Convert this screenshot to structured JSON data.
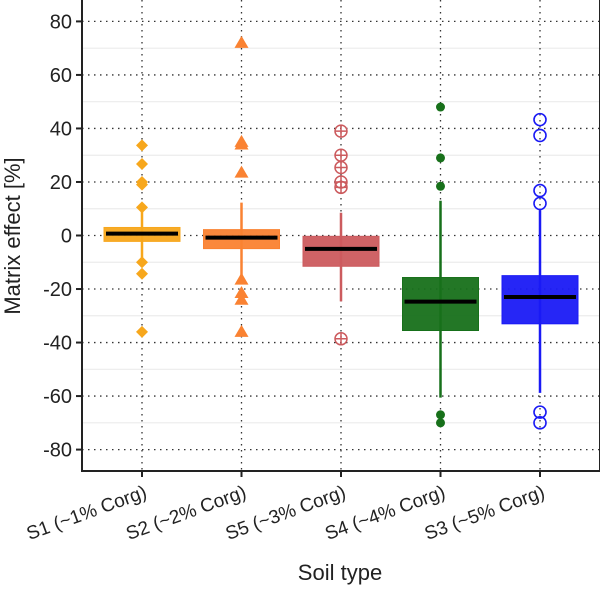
{
  "chart_data": {
    "type": "box",
    "title": "",
    "xlabel": "Soil type",
    "ylabel": "Matrix effect [%]",
    "ylim": [
      -88,
      88
    ],
    "yticks": [
      -80,
      -60,
      -40,
      -20,
      0,
      20,
      40,
      60,
      80
    ],
    "grid": {
      "major": "dotted",
      "minor": "light solid",
      "vertical": "dotted"
    },
    "categories": [
      "S1 (~1% Corg)",
      "S2 (~2% Corg)",
      "S5 (~3% Corg)",
      "S4 (~4% Corg)",
      "S3 (~5% Corg)"
    ],
    "series": [
      {
        "color": "#F7A71C",
        "marker": "diamond",
        "whisker_low": -9,
        "q1": -2.2,
        "median": 0.7,
        "q3": 3,
        "whisker_high": 9,
        "outliers": [
          33.7,
          26.7,
          20,
          19,
          10.5,
          -10,
          -14.3,
          -36
        ]
      },
      {
        "color": "#FA8232",
        "marker": "triangle",
        "whisker_low": -15,
        "q1": -4.9,
        "median": -0.8,
        "q3": 2.2,
        "whisker_high": 12.3,
        "outliers": [
          72,
          35,
          34,
          23.5,
          -16.5,
          -21.5,
          -24,
          -36
        ]
      },
      {
        "color": "#CC5B5E",
        "marker": "circle-plus",
        "whisker_low": -24.6,
        "q1": -11.5,
        "median": -5,
        "q3": -0.3,
        "whisker_high": 8.5,
        "outliers": [
          39,
          30,
          25.4,
          20,
          18,
          -38.6
        ]
      },
      {
        "color": "#17701A",
        "marker": "filled-circle",
        "whisker_low": -60.6,
        "q1": -35.5,
        "median": -24.7,
        "q3": -15.7,
        "whisker_high": 13,
        "outliers": [
          48,
          29,
          18.4,
          -67,
          -70
        ]
      },
      {
        "color": "#1A1AF5",
        "marker": "open-circle",
        "whisker_low": -58.8,
        "q1": -33,
        "median": -23,
        "q3": -15,
        "whisker_high": 9.5,
        "outliers": [
          43.3,
          37.4,
          16.8,
          12,
          -66,
          -70
        ]
      }
    ]
  }
}
